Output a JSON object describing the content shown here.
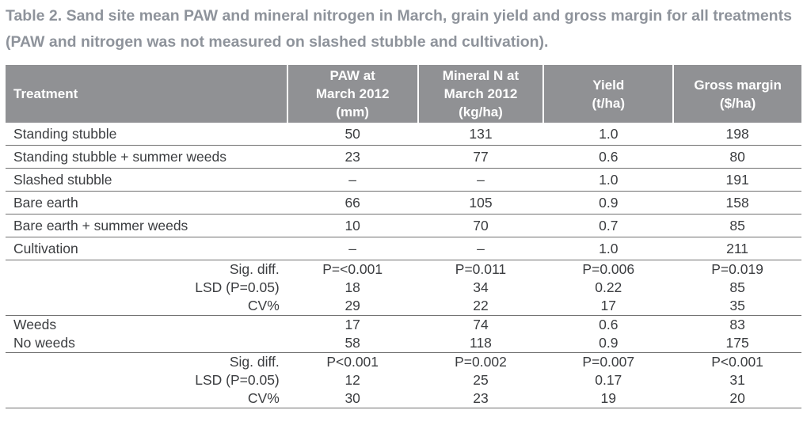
{
  "title": "Table 2. Sand site mean PAW and mineral nitrogen in March, grain yield and gross margin for all treatments (PAW and nitrogen was not measured on slashed stubble and cultivation).",
  "colors": {
    "title_text": "#8e939b",
    "header_bg": "#909194",
    "header_text": "#ffffff",
    "body_text": "#3b3d40",
    "row_line": "#707070"
  },
  "table": {
    "headers": [
      "Treatment",
      "PAW at\nMarch 2012\n(mm)",
      "Mineral N at\nMarch 2012\n(kg/ha)",
      "Yield\n(t/ha)",
      "Gross margin\n($/ha)"
    ],
    "rows": [
      {
        "label": "Standing stubble",
        "values": [
          "50",
          "131",
          "1.0",
          "198"
        ]
      },
      {
        "label": "Standing stubble + summer weeds",
        "values": [
          "23",
          "77",
          "0.6",
          "80"
        ]
      },
      {
        "label": "Slashed stubble",
        "values": [
          "–",
          "–",
          "1.0",
          "191"
        ]
      },
      {
        "label": "Bare earth",
        "values": [
          "66",
          "105",
          "0.9",
          "158"
        ]
      },
      {
        "label": "Bare earth + summer weeds",
        "values": [
          "10",
          "70",
          "0.7",
          "85"
        ]
      },
      {
        "label": "Cultivation",
        "values": [
          "–",
          "–",
          "1.0",
          "211"
        ]
      },
      {
        "label": "Sig. diff.",
        "values": [
          "P=<0.001",
          "P=0.011",
          "P=0.006",
          "P=0.019"
        ]
      },
      {
        "label": "LSD (P=0.05)",
        "values": [
          "18",
          "34",
          "0.22",
          "85"
        ]
      },
      {
        "label": "CV%",
        "values": [
          "29",
          "22",
          "17",
          "35"
        ]
      },
      {
        "label": "Weeds",
        "values": [
          "17",
          "74",
          "0.6",
          "83"
        ]
      },
      {
        "label": "No weeds",
        "values": [
          "58",
          "118",
          "0.9",
          "175"
        ]
      },
      {
        "label": "Sig. diff.",
        "values": [
          "P<0.001",
          "P=0.002",
          "P=0.007",
          "P<0.001"
        ]
      },
      {
        "label": "LSD (P=0.05)",
        "values": [
          "12",
          "25",
          "0.17",
          "31"
        ]
      },
      {
        "label": "CV%",
        "values": [
          "30",
          "23",
          "19",
          "20"
        ]
      }
    ]
  }
}
